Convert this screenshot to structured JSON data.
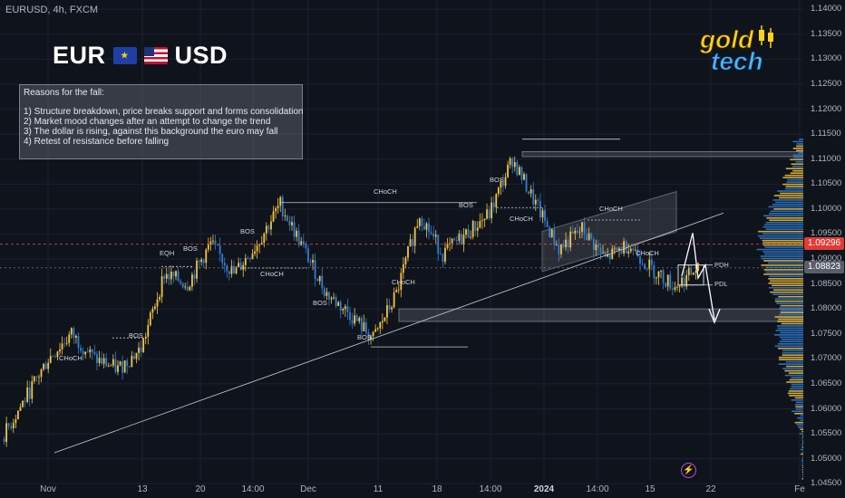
{
  "header": {
    "symbol": "EURUSD, 4h, FXCM"
  },
  "pair": {
    "base": "EUR",
    "quote": "USD",
    "base_flag_icon": "eu-flag-icon",
    "quote_flag_icon": "us-flag-icon"
  },
  "note": {
    "title": "Reasons for the fall:",
    "lines": [
      "1) Structure breakdown, price breaks support and forms consolidation",
      "2) Market mood changes after an attempt to change the trend",
      "3) The dollar is rising, against this background the euro may fall",
      "4) Retest of resistance before falling"
    ]
  },
  "logo": {
    "line1": "gold",
    "line2": "tech"
  },
  "y_axis": {
    "ticks": [
      "1.14000",
      "1.13500",
      "1.13000",
      "1.12500",
      "1.12000",
      "1.11500",
      "1.11000",
      "1.10500",
      "1.10000",
      "1.09500",
      "1.09000",
      "1.08500",
      "1.08000",
      "1.07500",
      "1.07000",
      "1.06500",
      "1.06000",
      "1.05500",
      "1.05000",
      "1.04500"
    ]
  },
  "x_axis": {
    "ticks": [
      "Nov",
      "13",
      "20",
      "14:00",
      "Dec",
      "11",
      "18",
      "14:00",
      "2024",
      "14:00",
      "15",
      "22",
      "Fe"
    ]
  },
  "price_labels": {
    "red": "1.09296",
    "gray": "1.08823"
  },
  "annotations": {
    "choch_left": "CHoCH",
    "bos_1": "BOS",
    "eqh": "EQH",
    "bos_2": "BOS",
    "bos_3": "BOS",
    "choch_2": "CHoCH",
    "choch_top": "CHoCH",
    "bos_4": "BOS",
    "choch_3": "CHoCH",
    "bos_5": "BOS",
    "bos_6": "BOS",
    "bos_7": "BOS",
    "choch_4": "CHoCH",
    "choch_5": "CHoCH",
    "choch_6": "CHoCH",
    "pdh": "PDH",
    "pdl": "PDL"
  },
  "colors": {
    "background": "#0f131c",
    "bull": "#f5c542",
    "bear": "#2f7fd6",
    "red_line": "#ef5350"
  },
  "chart_data": {
    "type": "candlestick",
    "symbol": "EURUSD",
    "timeframe": "4h",
    "ylim": [
      1.0445,
      1.1415
    ],
    "close_path": [
      [
        0,
        1.054
      ],
      [
        10,
        1.062
      ],
      [
        20,
        1.07
      ],
      [
        30,
        1.075
      ],
      [
        40,
        1.07
      ],
      [
        50,
        1.068
      ],
      [
        60,
        1.072
      ],
      [
        70,
        1.087
      ],
      [
        80,
        1.085
      ],
      [
        90,
        1.093
      ],
      [
        100,
        1.087
      ],
      [
        110,
        1.093
      ],
      [
        120,
        1.101
      ],
      [
        130,
        1.092
      ],
      [
        140,
        1.083
      ],
      [
        150,
        1.079
      ],
      [
        160,
        1.074
      ],
      [
        170,
        1.083
      ],
      [
        180,
        1.099
      ],
      [
        190,
        1.091
      ],
      [
        200,
        1.095
      ],
      [
        210,
        1.099
      ],
      [
        220,
        1.11
      ],
      [
        230,
        1.101
      ],
      [
        240,
        1.092
      ],
      [
        250,
        1.096
      ],
      [
        260,
        1.09
      ],
      [
        270,
        1.093
      ],
      [
        280,
        1.088
      ],
      [
        290,
        1.0845
      ],
      [
        300,
        1.0882
      ]
    ],
    "levels": {
      "last_price": 1.08823,
      "red_level": 1.09296
    }
  }
}
